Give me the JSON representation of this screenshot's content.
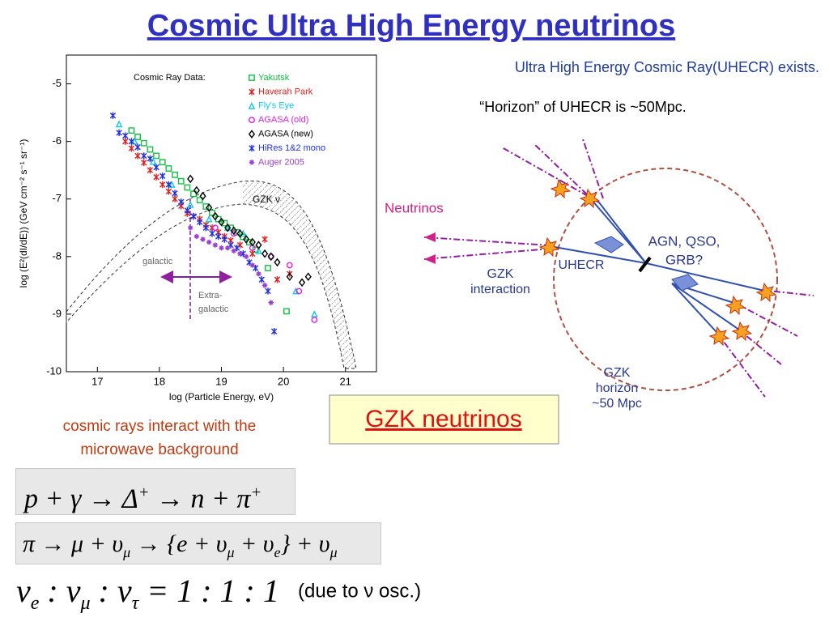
{
  "title": "Cosmic Ultra High Energy neutrinos",
  "chart_data": {
    "type": "scatter",
    "xlabel": "log (Particle Energy, eV)",
    "ylabel": "log (E²(dI/dE)) (GeV cm⁻² s⁻¹ sr⁻¹)",
    "xlim": [
      16.5,
      21.5
    ],
    "ylim": [
      -10,
      -4.5
    ],
    "xticks": [
      17,
      18,
      19,
      20,
      21
    ],
    "yticks": [
      -10,
      -9,
      -8,
      -7,
      -6,
      -5
    ],
    "legend_title": "Cosmic Ray Data:",
    "annotations": [
      "GZK ν",
      "galactic",
      "Extra-",
      "galactic"
    ],
    "series": [
      {
        "name": "Yakutsk",
        "color": "#10c040",
        "marker": "square",
        "x": [
          17.55,
          17.65,
          17.75,
          17.85,
          17.95,
          18.05,
          18.15,
          18.25,
          18.35,
          18.45,
          18.55,
          18.65,
          18.75,
          18.85,
          18.95,
          19.05,
          19.15,
          19.25,
          19.35,
          19.45,
          19.55,
          19.75,
          20.05
        ],
        "y": [
          -5.81,
          -5.92,
          -6.03,
          -6.14,
          -6.25,
          -6.36,
          -6.47,
          -6.58,
          -6.69,
          -6.8,
          -6.91,
          -7.02,
          -7.13,
          -7.24,
          -7.35,
          -7.42,
          -7.5,
          -7.58,
          -7.66,
          -7.75,
          -7.88,
          -8.2,
          -8.95
        ]
      },
      {
        "name": "Haverah Park",
        "color": "#e02020",
        "marker": "x",
        "x": [
          17.45,
          17.55,
          17.65,
          17.75,
          17.85,
          17.95,
          18.05,
          18.15,
          18.25,
          18.35,
          18.45,
          18.55,
          18.65,
          18.75,
          18.85,
          18.95,
          19.05,
          19.15,
          19.3,
          19.5,
          19.7,
          19.9,
          20.1
        ],
        "y": [
          -6.0,
          -6.12,
          -6.25,
          -6.37,
          -6.5,
          -6.62,
          -6.75,
          -6.87,
          -7.0,
          -7.12,
          -7.25,
          -7.3,
          -7.35,
          -7.45,
          -7.5,
          -7.58,
          -7.65,
          -7.72,
          -7.8,
          -7.95,
          -7.7,
          -8.4,
          -8.3
        ]
      },
      {
        "name": "Fly's Eye",
        "color": "#10c8e8",
        "marker": "triangle",
        "x": [
          17.35,
          17.6,
          17.9,
          18.2,
          18.5,
          18.8,
          19.1,
          19.35,
          19.6,
          20.2,
          20.5
        ],
        "y": [
          -5.7,
          -6.0,
          -6.35,
          -6.75,
          -7.1,
          -7.35,
          -7.5,
          -7.6,
          -7.9,
          -8.6,
          -9.0
        ]
      },
      {
        "name": "AGASA (old)",
        "color": "#e020e0",
        "marker": "circle",
        "x": [
          18.9,
          19.2,
          19.5,
          19.8,
          20.1,
          20.25,
          20.5
        ],
        "y": [
          -7.5,
          -7.6,
          -7.85,
          -8.0,
          -8.15,
          -8.6,
          -9.1
        ]
      },
      {
        "name": "AGASA (new)",
        "color": "#000000",
        "marker": "diamond",
        "x": [
          18.5,
          18.6,
          18.7,
          18.8,
          18.9,
          19.0,
          19.1,
          19.2,
          19.3,
          19.4,
          19.5,
          19.6,
          19.7,
          19.8,
          19.9,
          20.1,
          20.3,
          20.4
        ],
        "y": [
          -6.65,
          -6.85,
          -6.95,
          -7.15,
          -7.3,
          -7.4,
          -7.5,
          -7.55,
          -7.6,
          -7.7,
          -7.75,
          -7.8,
          -7.95,
          -8.0,
          -8.1,
          -8.35,
          -8.45,
          -8.35
        ]
      },
      {
        "name": "HiRes 1&2 mono",
        "color": "#2030e0",
        "marker": "x",
        "x": [
          17.25,
          17.35,
          17.45,
          17.55,
          17.65,
          17.75,
          17.85,
          17.95,
          18.05,
          18.15,
          18.25,
          18.35,
          18.45,
          18.55,
          18.65,
          18.75,
          18.85,
          18.95,
          19.05,
          19.15,
          19.25,
          19.35,
          19.45,
          19.55,
          19.65,
          19.75,
          19.85
        ],
        "y": [
          -5.55,
          -5.85,
          -5.9,
          -6.0,
          -6.1,
          -6.25,
          -6.3,
          -6.45,
          -6.6,
          -6.75,
          -6.9,
          -7.05,
          -7.2,
          -7.3,
          -7.4,
          -7.5,
          -7.6,
          -7.65,
          -7.7,
          -7.8,
          -7.85,
          -7.95,
          -8.1,
          -8.2,
          -8.4,
          -8.6,
          -9.3
        ]
      },
      {
        "name": "Auger 2005",
        "color": "#9a40d0",
        "marker": "star",
        "x": [
          18.5,
          18.6,
          18.7,
          18.8,
          18.9,
          19.0,
          19.1,
          19.2,
          19.3,
          19.4,
          19.5,
          19.6,
          19.7,
          19.8
        ],
        "y": [
          -7.5,
          -7.65,
          -7.7,
          -7.75,
          -7.8,
          -7.85,
          -7.85,
          -7.9,
          -7.95,
          -8.0,
          -8.15,
          -8.3,
          -8.5,
          -8.8
        ]
      }
    ]
  },
  "statements": [
    "Ultra High Energy Cosmic Ray(UHECR) exists.",
    "“Horizon” of UHECR is ~50Mpc."
  ],
  "diagram": {
    "neutrinos": "Neutrinos",
    "source": [
      "AGN, QSO,",
      "GRB?"
    ],
    "uhecr": "UHECR",
    "interaction": [
      "GZK",
      "interaction"
    ],
    "horizon": [
      "GZK",
      "horizon",
      "~50 Mpc"
    ]
  },
  "callout": "GZK neutrinos",
  "caption": [
    "cosmic rays interact with the",
    "microwave background"
  ],
  "equations": [
    {
      "parts": [
        "p + γ → Δ",
        {
          "sup": "+"
        },
        " → n + π",
        {
          "sup": "+"
        }
      ]
    },
    {
      "parts": [
        "π → μ + υ",
        {
          "sub": "μ"
        },
        " → {e + υ",
        {
          "sub": "μ"
        },
        " + υ",
        {
          "sub": "e"
        },
        "} + υ",
        {
          "sub": "μ"
        }
      ]
    },
    {
      "parts": [
        "ν",
        {
          "sub": "e"
        },
        " : ν",
        {
          "sub": "μ"
        },
        " : ν",
        {
          "sub": "τ"
        },
        " = 1 : 1 : 1"
      ]
    }
  ],
  "note": "(due to ν osc.)"
}
